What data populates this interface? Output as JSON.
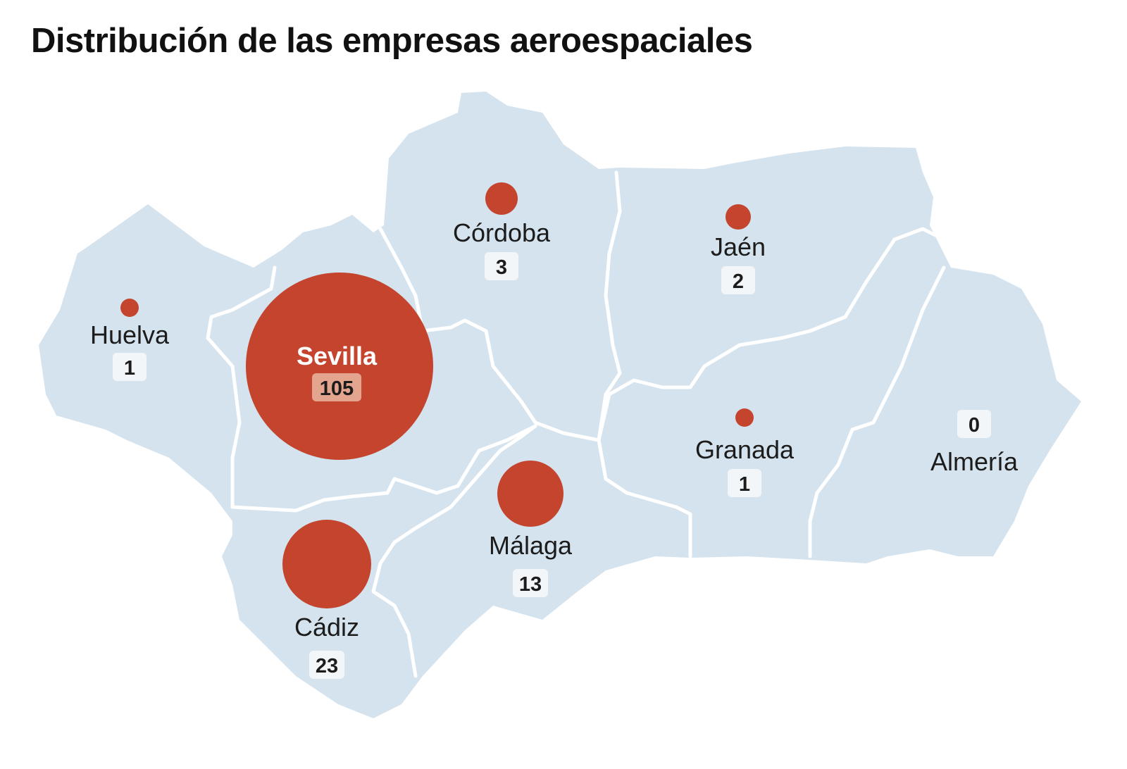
{
  "title": "Distribución de las empresas aeroespaciales",
  "colors": {
    "land": "#d4e3ed",
    "border": "#ffffff",
    "bubble": "#c4442e",
    "label_box": "#f3f6f8"
  },
  "provinces": [
    {
      "name": "Huelva",
      "count": "1",
      "value": 1
    },
    {
      "name": "Sevilla",
      "count": "105",
      "value": 105
    },
    {
      "name": "Córdoba",
      "count": "3",
      "value": 3
    },
    {
      "name": "Jaén",
      "count": "2",
      "value": 2
    },
    {
      "name": "Cádiz",
      "count": "23",
      "value": 23
    },
    {
      "name": "Málaga",
      "count": "13",
      "value": 13
    },
    {
      "name": "Granada",
      "count": "1",
      "value": 1
    },
    {
      "name": "Almería",
      "count": "0",
      "value": 0
    }
  ]
}
